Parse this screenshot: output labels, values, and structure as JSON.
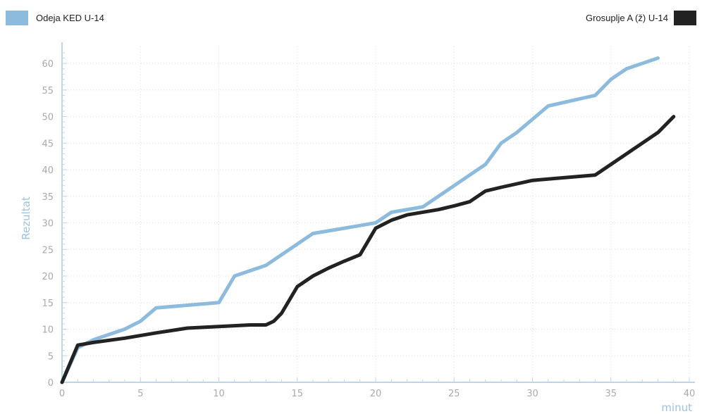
{
  "chart_data": {
    "type": "line",
    "xlabel": "minut",
    "ylabel": "Rezultat",
    "xlim": [
      0,
      40
    ],
    "ylim": [
      0,
      62
    ],
    "xticks": [
      0,
      5,
      10,
      15,
      20,
      25,
      30,
      35,
      40
    ],
    "yticks": [
      0,
      5,
      10,
      15,
      20,
      25,
      30,
      35,
      40,
      45,
      50,
      55,
      60
    ],
    "grid": true,
    "series": [
      {
        "name": "Odeja KED U-14",
        "color": "#8cbbdd",
        "points": [
          [
            0,
            0
          ],
          [
            1,
            6.5
          ],
          [
            2,
            8
          ],
          [
            4,
            10
          ],
          [
            5,
            11.5
          ],
          [
            6,
            14
          ],
          [
            8,
            14.5
          ],
          [
            10,
            15
          ],
          [
            11,
            20
          ],
          [
            13,
            22
          ],
          [
            14,
            24
          ],
          [
            15,
            26
          ],
          [
            16,
            28
          ],
          [
            18,
            29
          ],
          [
            20,
            30
          ],
          [
            21,
            32
          ],
          [
            23,
            33
          ],
          [
            24,
            35
          ],
          [
            25,
            37
          ],
          [
            26,
            39
          ],
          [
            27,
            41
          ],
          [
            28,
            45
          ],
          [
            29,
            47
          ],
          [
            30,
            49.5
          ],
          [
            31,
            52
          ],
          [
            34,
            54
          ],
          [
            35,
            57
          ],
          [
            36,
            59
          ],
          [
            38,
            61
          ]
        ]
      },
      {
        "name": "Grosuplje A (ž) U-14",
        "color": "#222222",
        "points": [
          [
            0,
            0
          ],
          [
            1,
            7
          ],
          [
            2,
            7.5
          ],
          [
            4,
            8.3
          ],
          [
            6,
            9.3
          ],
          [
            8,
            10.2
          ],
          [
            10,
            10.5
          ],
          [
            12,
            10.8
          ],
          [
            13,
            10.8
          ],
          [
            13.5,
            11.5
          ],
          [
            14,
            13
          ],
          [
            15,
            18
          ],
          [
            16,
            20
          ],
          [
            17,
            21.5
          ],
          [
            18,
            22.8
          ],
          [
            19,
            24
          ],
          [
            20,
            29
          ],
          [
            21,
            30.5
          ],
          [
            22,
            31.5
          ],
          [
            24,
            32.5
          ],
          [
            25,
            33.2
          ],
          [
            26,
            34
          ],
          [
            27,
            36
          ],
          [
            28,
            36.7
          ],
          [
            30,
            38
          ],
          [
            32,
            38.5
          ],
          [
            34,
            39
          ],
          [
            35,
            41
          ],
          [
            36,
            43
          ],
          [
            38,
            47
          ],
          [
            39,
            50
          ]
        ]
      }
    ]
  }
}
